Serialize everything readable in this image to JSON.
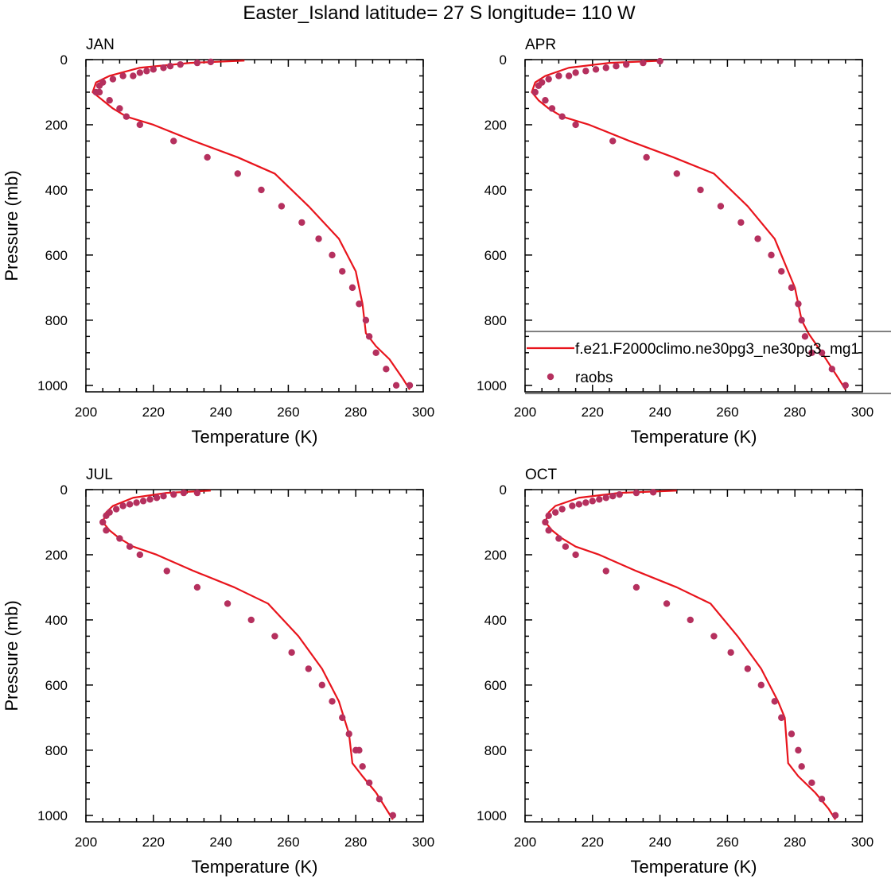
{
  "title": "Easter_Island  latitude= 27 S longitude= 110 W",
  "colors": {
    "model_line": "#e8141c",
    "obs_marker": "#b5305e",
    "axes": "#000000"
  },
  "legend": {
    "model_label": "f.e21.F2000climo.ne30pg3_ne30pg3_mg1",
    "obs_label": "raobs",
    "panel": "APR",
    "placement": "right-bottom, overlapping panel"
  },
  "chart_data": [
    {
      "type": "line+scatter",
      "panel": "JAN",
      "xlabel": "Temperature (K)",
      "ylabel": "Pressure (mb)",
      "xlim": [
        200,
        300
      ],
      "ylim": [
        1020,
        0
      ],
      "xticks": [
        200,
        220,
        240,
        260,
        280,
        300
      ],
      "yticks": [
        0,
        200,
        400,
        600,
        800,
        1000
      ],
      "model": {
        "temperature": [
          247,
          231,
          216,
          207,
          203,
          202,
          205,
          208,
          212,
          220,
          232,
          245,
          256,
          266,
          275,
          280,
          282,
          283,
          286,
          290,
          294,
          296
        ],
        "pressure": [
          3,
          10,
          25,
          50,
          70,
          100,
          125,
          150,
          175,
          200,
          250,
          300,
          350,
          450,
          550,
          650,
          750,
          840,
          880,
          920,
          980,
          1013
        ]
      },
      "obs": {
        "temperature": [
          237,
          233,
          228,
          225,
          223,
          220,
          218,
          216,
          214,
          211,
          208,
          205,
          204,
          203,
          204,
          207,
          210,
          212,
          216,
          226,
          236,
          245,
          252,
          258,
          264,
          269,
          273,
          276,
          279,
          281,
          283,
          284,
          286,
          289,
          292,
          296
        ],
        "pressure": [
          7,
          10,
          15,
          20,
          25,
          30,
          35,
          40,
          50,
          50,
          60,
          70,
          80,
          100,
          100,
          125,
          150,
          175,
          200,
          250,
          300,
          350,
          400,
          450,
          500,
          550,
          600,
          650,
          700,
          750,
          800,
          850,
          900,
          950,
          1000,
          1000
        ]
      }
    },
    {
      "type": "line+scatter",
      "panel": "APR",
      "xlabel": "Temperature (K)",
      "ylabel": "",
      "xlim": [
        200,
        300
      ],
      "ylim": [
        1020,
        0
      ],
      "xticks": [
        200,
        220,
        240,
        260,
        280,
        300
      ],
      "yticks": [
        0,
        200,
        400,
        600,
        800,
        1000
      ],
      "model": {
        "temperature": [
          241,
          225,
          213,
          206,
          203,
          202,
          204,
          207,
          211,
          219,
          231,
          244,
          256,
          266,
          274,
          278,
          280,
          282,
          284,
          288,
          293,
          295
        ],
        "pressure": [
          3,
          10,
          25,
          50,
          70,
          100,
          125,
          150,
          175,
          200,
          250,
          300,
          350,
          450,
          550,
          650,
          700,
          800,
          840,
          900,
          980,
          1013
        ]
      },
      "obs": {
        "temperature": [
          240,
          235,
          230,
          227,
          224,
          221,
          218,
          215,
          213,
          210,
          207,
          205,
          204,
          203,
          206,
          208,
          211,
          215,
          226,
          236,
          245,
          252,
          258,
          264,
          269,
          273,
          276,
          279,
          281,
          282,
          283,
          285,
          288,
          291,
          295
        ],
        "pressure": [
          5,
          10,
          15,
          20,
          25,
          30,
          35,
          40,
          50,
          50,
          60,
          70,
          80,
          100,
          125,
          150,
          175,
          200,
          250,
          300,
          350,
          400,
          450,
          500,
          550,
          600,
          650,
          700,
          750,
          800,
          850,
          900,
          900,
          950,
          1000
        ]
      }
    },
    {
      "type": "line+scatter",
      "panel": "JUL",
      "xlabel": "Temperature (K)",
      "ylabel": "Pressure (mb)",
      "xlim": [
        200,
        300
      ],
      "ylim": [
        1020,
        0
      ],
      "xticks": [
        200,
        220,
        240,
        260,
        280,
        300
      ],
      "yticks": [
        0,
        200,
        400,
        600,
        800,
        1000
      ],
      "model": {
        "temperature": [
          237,
          224,
          214,
          208,
          206,
          205,
          207,
          210,
          214,
          221,
          232,
          244,
          254,
          263,
          270,
          275,
          278,
          279,
          282,
          286,
          289,
          291
        ],
        "pressure": [
          3,
          10,
          25,
          50,
          70,
          100,
          125,
          150,
          175,
          200,
          250,
          300,
          350,
          450,
          550,
          650,
          750,
          840,
          880,
          930,
          980,
          1013
        ]
      },
      "obs": {
        "temperature": [
          233,
          229,
          226,
          223,
          221,
          219,
          217,
          215,
          213,
          211,
          209,
          207,
          206,
          205,
          206,
          210,
          213,
          216,
          224,
          233,
          242,
          249,
          256,
          261,
          266,
          270,
          273,
          276,
          278,
          280,
          281,
          282,
          284,
          287,
          291
        ],
        "pressure": [
          10,
          10,
          15,
          20,
          25,
          30,
          35,
          40,
          45,
          50,
          60,
          70,
          80,
          100,
          125,
          150,
          175,
          200,
          250,
          300,
          350,
          400,
          450,
          500,
          550,
          600,
          650,
          700,
          750,
          800,
          800,
          850,
          900,
          950,
          1000
        ]
      }
    },
    {
      "type": "line+scatter",
      "panel": "OCT",
      "xlabel": "Temperature (K)",
      "ylabel": "",
      "xlim": [
        200,
        300
      ],
      "ylim": [
        1020,
        0
      ],
      "xticks": [
        200,
        220,
        240,
        260,
        280,
        300
      ],
      "yticks": [
        0,
        200,
        400,
        600,
        800,
        1000
      ],
      "model": {
        "temperature": [
          245,
          228,
          216,
          209,
          207,
          206,
          208,
          211,
          215,
          222,
          233,
          245,
          255,
          263,
          270,
          275,
          277,
          278,
          281,
          286,
          290,
          292
        ],
        "pressure": [
          3,
          10,
          25,
          50,
          70,
          100,
          125,
          150,
          175,
          200,
          250,
          300,
          350,
          450,
          550,
          650,
          700,
          840,
          880,
          930,
          980,
          1013
        ]
      },
      "obs": {
        "temperature": [
          238,
          233,
          228,
          226,
          224,
          222,
          220,
          218,
          216,
          214,
          211,
          209,
          207,
          206,
          207,
          210,
          212,
          215,
          224,
          233,
          242,
          249,
          256,
          261,
          266,
          270,
          274,
          276,
          279,
          281,
          282,
          285,
          288,
          292
        ],
        "pressure": [
          8,
          10,
          15,
          20,
          25,
          30,
          35,
          40,
          45,
          50,
          60,
          70,
          80,
          100,
          125,
          150,
          175,
          200,
          250,
          300,
          350,
          400,
          450,
          500,
          550,
          600,
          650,
          700,
          750,
          800,
          850,
          900,
          950,
          1000
        ]
      }
    }
  ]
}
